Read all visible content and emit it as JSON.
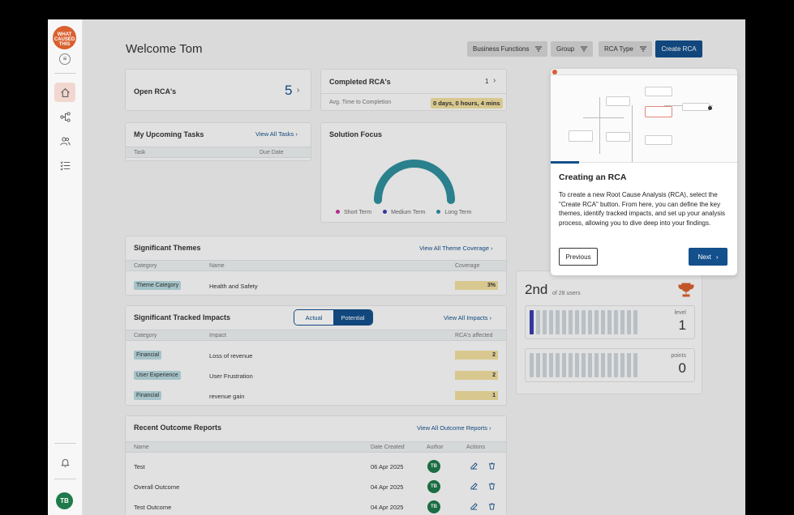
{
  "sidebar": {
    "logo_text": "WHAT CAUSED THIS",
    "nav": [
      {
        "icon": "home-icon"
      },
      {
        "icon": "hierarchy-icon"
      },
      {
        "icon": "users-icon"
      },
      {
        "icon": "checklist-icon"
      }
    ],
    "notification_icon": "bell-icon",
    "user_initials": "TB"
  },
  "header": {
    "welcome": "Welcome Tom",
    "filters": [
      "Business Functions",
      "Group",
      "RCA Type"
    ],
    "create_label": "Create RCA"
  },
  "open_rcas": {
    "label": "Open RCA's",
    "count": "5"
  },
  "completed_rcas": {
    "label": "Completed RCA's",
    "count": "1",
    "avg_label": "Avg. Time to Completion",
    "avg_value": "0 days, 0 hours, 4 mins"
  },
  "tasks": {
    "title": "My Upcoming Tasks",
    "link": "View All Tasks",
    "col_task": "Task",
    "col_due": "Due Date"
  },
  "solution_focus": {
    "title": "Solution Focus",
    "legend": [
      {
        "name": "Short Term",
        "color": "#c8329a"
      },
      {
        "name": "Medium Term",
        "color": "#3b3bb0"
      },
      {
        "name": "Long Term",
        "color": "#2f8f9d"
      }
    ],
    "chart_data": {
      "type": "pie",
      "series": [
        {
          "name": "Short Term",
          "value": 0
        },
        {
          "name": "Medium Term",
          "value": 0
        },
        {
          "name": "Long Term",
          "value": 1
        }
      ]
    }
  },
  "themes": {
    "title": "Significant Themes",
    "link": "View All Theme Coverage",
    "columns": [
      "Category",
      "Name",
      "Coverage"
    ],
    "rows": [
      {
        "category": "Theme Category",
        "name": "Health and Safety",
        "coverage": "3%"
      }
    ]
  },
  "impacts": {
    "title": "Significant Tracked Impacts",
    "toggle": [
      "Actual",
      "Potential"
    ],
    "link": "View All Impacts",
    "columns": [
      "Category",
      "Impact",
      "RCA's affected"
    ],
    "rows": [
      {
        "category": "Financial",
        "impact": "Loss of revenue",
        "count": "2"
      },
      {
        "category": "User Experience",
        "impact": "User Frustration",
        "count": "2"
      },
      {
        "category": "Financial",
        "impact": "revenue gain",
        "count": "1"
      }
    ]
  },
  "outcomes": {
    "title": "Recent Outcome Reports",
    "link": "View All Outcome Reports",
    "columns": [
      "Name",
      "Date Created",
      "Author",
      "Actions"
    ],
    "rows": [
      {
        "name": "Test",
        "date": "06 Apr 2025",
        "author": "TB"
      },
      {
        "name": "Overall Outcome",
        "date": "04 Apr 2025",
        "author": "TB"
      },
      {
        "name": "Test Outcome",
        "date": "04 Apr 2025",
        "author": "TB"
      }
    ]
  },
  "leaderboard": {
    "rank": "2nd",
    "of_users": "of 28 users",
    "level_label": "level",
    "level_value": "1",
    "points_label": "points",
    "points_value": "0"
  },
  "tour": {
    "title": "Creating an RCA",
    "body": "To create a new Root Cause Analysis (RCA), select the \"Create RCA\" button. From here, you can define the key themes, identify tracked impacts, and set up your analysis process, allowing you to dive deep into your findings.",
    "prev_label": "Previous",
    "next_label": "Next"
  }
}
